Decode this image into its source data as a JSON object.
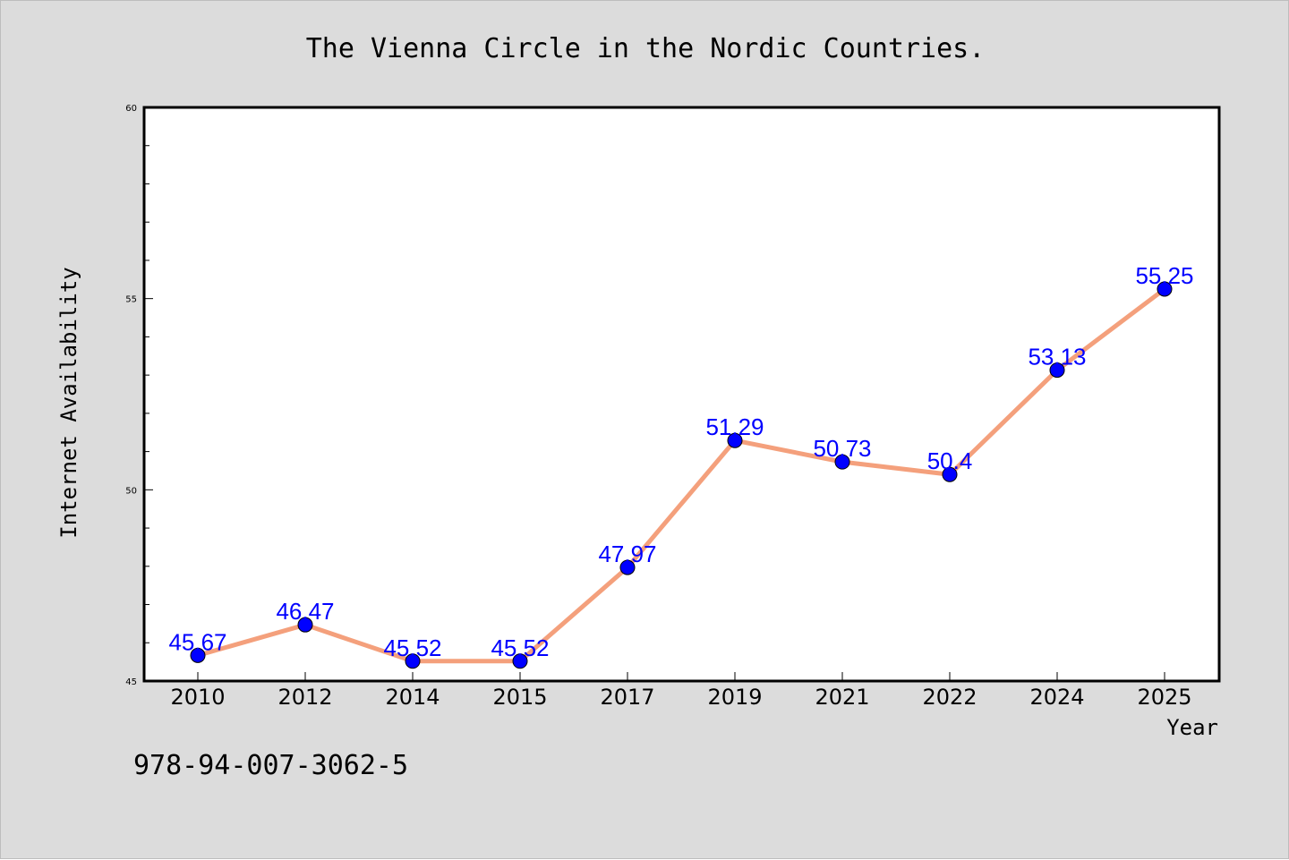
{
  "chart_data": {
    "type": "line",
    "title": "The Vienna Circle in the Nordic Countries.",
    "xlabel": "Year",
    "ylabel": "Internet Availability",
    "categories": [
      "2010",
      "2012",
      "2014",
      "2015",
      "2017",
      "2019",
      "2021",
      "2022",
      "2024",
      "2025"
    ],
    "series": [
      {
        "values": [
          45.67,
          46.47,
          45.52,
          45.52,
          47.97,
          51.29,
          50.73,
          50.4,
          53.13,
          55.25
        ],
        "data_labels": [
          "45.67",
          "46.47",
          "45.52",
          "45.52",
          "47.97",
          "51.29",
          "50.73",
          "50.4",
          "53.13",
          "55.25"
        ],
        "line_color": "#f4a07c",
        "marker_color": "#0000ff",
        "label_color": "#0000ff"
      }
    ],
    "ylim": [
      45,
      60
    ],
    "yticks": [
      45,
      50,
      55,
      60
    ],
    "ytick_labels": [
      "45",
      "50",
      "55",
      "60"
    ],
    "grid": false,
    "legend": "none"
  },
  "footer": {
    "isbn": "978-94-007-3062-5"
  },
  "colors": {
    "figure_background": "#dcdcdc",
    "plot_background": "#ffffff"
  }
}
